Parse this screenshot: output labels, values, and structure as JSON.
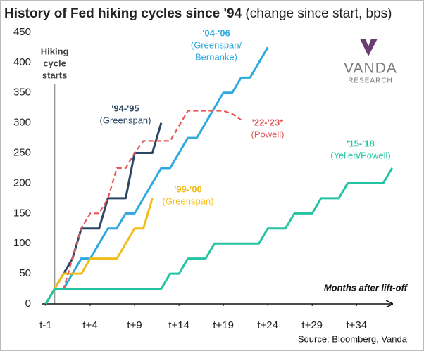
{
  "chart_data": {
    "type": "line",
    "title": "History of Fed hiking cycles since '94",
    "subtitle": "(change since start, bps)",
    "x_label": "Months after lift-off",
    "annotation": [
      "Hiking",
      "cycle",
      "starts"
    ],
    "source": "Source: Bloomberg, Vanda",
    "logo": [
      "VANDA",
      "RESEARCH"
    ],
    "xlim": [
      -1,
      38.5
    ],
    "ylim": [
      0,
      450
    ],
    "xticks": [
      {
        "value": -1,
        "label": "t-1"
      },
      {
        "value": 4,
        "label": "t+4"
      },
      {
        "value": 9,
        "label": "t+9"
      },
      {
        "value": 14,
        "label": "t+14"
      },
      {
        "value": 19,
        "label": "t+19"
      },
      {
        "value": 24,
        "label": "t+24"
      },
      {
        "value": 29,
        "label": "t+29"
      },
      {
        "value": 34,
        "label": "t+34"
      }
    ],
    "yticks": [
      0,
      50,
      100,
      150,
      200,
      250,
      300,
      350,
      400,
      450
    ],
    "grid": false,
    "cycle_start": 0,
    "series": [
      {
        "name": "'94-'95",
        "label": [
          "(Greenspan)"
        ],
        "color": "#2b4764",
        "dashed": false,
        "x": [
          -1,
          0,
          1,
          2,
          3,
          4,
          5,
          6,
          7,
          8,
          9,
          10,
          11,
          12
        ],
        "values": [
          0,
          25,
          50,
          75,
          125,
          125,
          125,
          175,
          175,
          175,
          250,
          250,
          250,
          300
        ]
      },
      {
        "name": "'04-'06",
        "label": [
          "(Greenspan/",
          "Bernanke)"
        ],
        "color": "#2ea9df",
        "dashed": false,
        "x": [
          -1,
          0,
          1,
          2,
          3,
          4,
          5,
          6,
          7,
          8,
          9,
          10,
          11,
          12,
          13,
          14,
          15,
          16,
          17,
          18,
          19,
          20,
          21,
          22,
          23,
          24
        ],
        "values": [
          0,
          25,
          25,
          50,
          75,
          75,
          100,
          125,
          125,
          150,
          150,
          175,
          200,
          225,
          225,
          250,
          275,
          275,
          300,
          325,
          350,
          350,
          375,
          375,
          400,
          425
        ]
      },
      {
        "name": "'99-'00",
        "label": [
          "(Greenspan)"
        ],
        "color": "#f2bd1a",
        "dashed": false,
        "x": [
          -1,
          0,
          1,
          2,
          3,
          4,
          5,
          6,
          7,
          8,
          9,
          10,
          11
        ],
        "values": [
          0,
          25,
          50,
          50,
          50,
          75,
          75,
          75,
          75,
          100,
          125,
          125,
          175
        ]
      },
      {
        "name": "'22-'23*",
        "label": [
          "(Powell)"
        ],
        "color": "#e5575a",
        "dashed": true,
        "x": [
          0,
          1,
          2,
          3,
          4,
          5,
          6,
          7,
          8,
          9,
          10,
          11,
          12,
          13,
          14,
          15,
          16,
          17,
          18,
          19,
          20,
          21
        ],
        "values": [
          25,
          25,
          75,
          125,
          150,
          150,
          175,
          225,
          225,
          250,
          270,
          270,
          270,
          270,
          295,
          320,
          320,
          320,
          320,
          320,
          315,
          305
        ]
      },
      {
        "name": "'15-'18",
        "label": [
          "(Yellen/Powell)"
        ],
        "color": "#23c4a2",
        "dashed": false,
        "x": [
          -1,
          0,
          1,
          2,
          3,
          4,
          5,
          6,
          7,
          8,
          9,
          10,
          11,
          12,
          13,
          14,
          15,
          16,
          17,
          18,
          19,
          20,
          21,
          22,
          23,
          24,
          25,
          26,
          27,
          28,
          29,
          30,
          31,
          32,
          33,
          34,
          35,
          36,
          37,
          38
        ],
        "values": [
          0,
          25,
          25,
          25,
          25,
          25,
          25,
          25,
          25,
          25,
          25,
          25,
          25,
          25,
          50,
          50,
          75,
          75,
          75,
          100,
          100,
          100,
          100,
          100,
          100,
          125,
          125,
          125,
          150,
          150,
          150,
          175,
          175,
          175,
          200,
          200,
          200,
          200,
          200,
          225
        ]
      }
    ]
  }
}
